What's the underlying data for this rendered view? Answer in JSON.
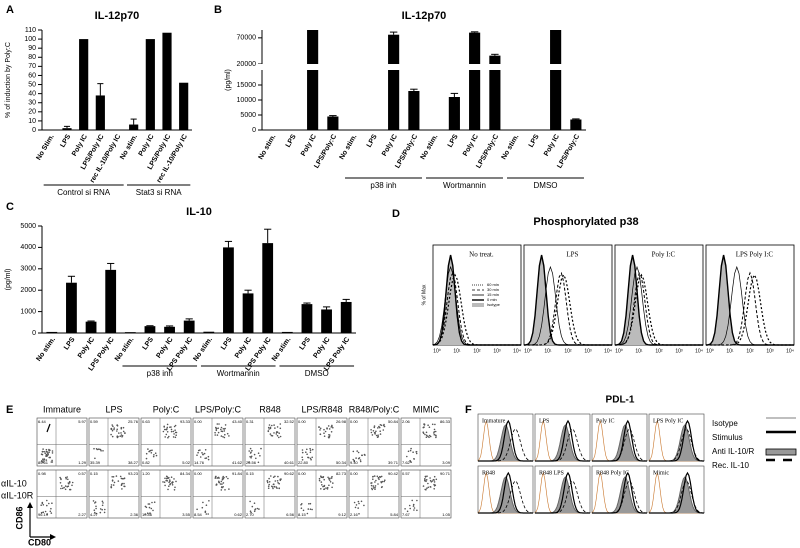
{
  "chart_data": [
    {
      "type": "bar",
      "panel_label": "A",
      "title": "IL-12p70",
      "ylabel": "% of induction by Poly:C",
      "color": "#000000",
      "ylim": [
        0,
        110
      ],
      "yticks": [
        0,
        10,
        20,
        30,
        40,
        50,
        60,
        70,
        80,
        90,
        100,
        110
      ],
      "groups": [
        {
          "label": "Control si  RNA",
          "categories": [
            "No Stim.",
            "LPS",
            "Poly IC",
            "LPS/Poly IC",
            "rec IL-10/Poly IC"
          ],
          "values": [
            0,
            2,
            100,
            38,
            0
          ],
          "errors": [
            0,
            2,
            0,
            13,
            0
          ]
        },
        {
          "label": "Stat3 si  RNA",
          "categories": [
            "No stim.",
            "Poly IC",
            "LPS/Poly IC",
            "rec IL-10/Poly IC"
          ],
          "values": [
            6,
            100,
            107,
            52
          ],
          "errors": [
            6,
            0,
            0,
            0
          ]
        }
      ]
    },
    {
      "type": "bar",
      "panel_label": "B",
      "title": "IL-12p70",
      "ylabel": "(pg/ml)",
      "color": "#000000",
      "ylim": [
        0,
        85000
      ],
      "ybreak": 20000,
      "yticks": [
        0,
        5000,
        10000,
        15000,
        20000,
        70000
      ],
      "groups": [
        {
          "categories": [
            "No stim.",
            "LPS",
            "Poly IC",
            "LPS/Poly:C"
          ],
          "values": [
            0,
            0,
            85000,
            4500
          ],
          "errors": [
            0,
            0,
            0,
            300
          ]
        },
        {
          "label": "p38 inh",
          "categories": [
            "No stim.",
            "LPS",
            "Poly IC",
            "LPS/Poly:C"
          ],
          "values": [
            0,
            0,
            76000,
            13000
          ],
          "errors": [
            0,
            0,
            5000,
            600
          ]
        },
        {
          "label": "Wortmannin",
          "categories": [
            "No stim.",
            "LPS",
            "Poly IC",
            "LPS/Poly:C"
          ],
          "values": [
            0,
            11000,
            80000,
            36000
          ],
          "errors": [
            0,
            1200,
            1500,
            2500
          ]
        },
        {
          "label": "DMSO",
          "categories": [
            "No stim.",
            "LPS",
            "Poly IC",
            "LPS/Poly:C"
          ],
          "values": [
            0,
            0,
            85000,
            3500
          ],
          "errors": [
            0,
            0,
            0,
            200
          ]
        }
      ]
    },
    {
      "type": "bar",
      "panel_label": "C",
      "title": "IL-10",
      "ylabel": "(pg/ml)",
      "color": "#000000",
      "ylim": [
        0,
        5000
      ],
      "yticks": [
        0,
        1000,
        2000,
        3000,
        4000,
        5000
      ],
      "groups": [
        {
          "categories": [
            "No stim.",
            "LPS",
            "Poly IC",
            "LPS Poly IC"
          ],
          "values": [
            50,
            2350,
            530,
            2950
          ],
          "errors": [
            0,
            300,
            30,
            300
          ]
        },
        {
          "label": "p38 inh",
          "categories": [
            "No stim.",
            "LPS",
            "Poly IC",
            "LPS Poly IC"
          ],
          "values": [
            40,
            320,
            290,
            580
          ],
          "errors": [
            0,
            20,
            40,
            80
          ]
        },
        {
          "label": "Wortmannin",
          "categories": [
            "No stim.",
            "LPS",
            "Poly IC",
            "LPS Poly IC"
          ],
          "values": [
            60,
            4000,
            1850,
            4200
          ],
          "errors": [
            0,
            280,
            150,
            650
          ]
        },
        {
          "label": "DMSO",
          "categories": [
            "No stim.",
            "LPS",
            "Poly IC",
            "LPS Poly IC"
          ],
          "values": [
            50,
            1350,
            1100,
            1450
          ],
          "errors": [
            0,
            50,
            120,
            120
          ]
        }
      ]
    }
  ],
  "panel_d": {
    "panel_label": "D",
    "title": "Phosphorylated p38",
    "ylabel": "% of Max",
    "plots": [
      "No treat.",
      "LPS",
      "Poly I:C",
      "LPS Poly I:C"
    ],
    "legend": [
      "60 min",
      "30 min",
      "15 min",
      "0 min",
      "Isotype"
    ],
    "xticks": [
      "10⁰",
      "10¹",
      "10²",
      "10³",
      "10⁴"
    ]
  },
  "panel_e": {
    "panel_label": "E",
    "columns": [
      "Immature",
      "LPS",
      "Poly:C",
      "LPS/Poly:C",
      "R848",
      "LPS/R848",
      "R848/Poly:C",
      "MIMIC"
    ],
    "row_labels": [
      "αIL-10",
      "αIL-10R"
    ],
    "yaxis": "CD86",
    "xaxis": "CD80",
    "quadrants": [
      [
        [
          "6.44",
          "5.97",
          "85.61",
          "1.29"
        ],
        [
          "0.59",
          "25.76",
          "35.39",
          "38.27"
        ],
        [
          "0.63",
          "93.33",
          "0.82",
          "5.02"
        ],
        [
          "0.00",
          "43.40",
          "14.76",
          "41.62"
        ],
        [
          "0.31",
          "32.52",
          "26.56",
          "40.61"
        ],
        [
          "0.00",
          "26.98",
          "22.80",
          "50.34"
        ],
        [
          "0.00",
          "50.84",
          "9.40",
          "39.71"
        ],
        [
          "2.06",
          "86.33",
          "7.62",
          "3.09"
        ]
      ],
      [
        [
          "0.98",
          "0.57",
          "96.19",
          "2.27"
        ],
        [
          "0.15",
          "93.23",
          "4.27",
          "2.36"
        ],
        [
          "1.20",
          "84.34",
          "10.86",
          "3.55"
        ],
        [
          "0.00",
          "91.84",
          "8.54",
          "0.62"
        ],
        [
          "0.15",
          "90.62",
          "2.70",
          "6.56"
        ],
        [
          "0.00",
          "82.73",
          "8.15",
          "9.12"
        ],
        [
          "0.00",
          "90.42",
          "2.16",
          "5.84"
        ],
        [
          "0.57",
          "90.71",
          "7.67",
          "1.05"
        ]
      ]
    ]
  },
  "panel_f": {
    "panel_label": "F",
    "title": "PDL-1",
    "plots": [
      "Immature",
      "LPS",
      "Poly IC",
      "LPS Poly IC",
      "R848",
      "R848 LPS",
      "R848 Poly IC",
      "Mimic"
    ],
    "legend": [
      "Isotype",
      "Stimulus",
      "Anti IL-10/R",
      "Rec. IL-10"
    ]
  }
}
